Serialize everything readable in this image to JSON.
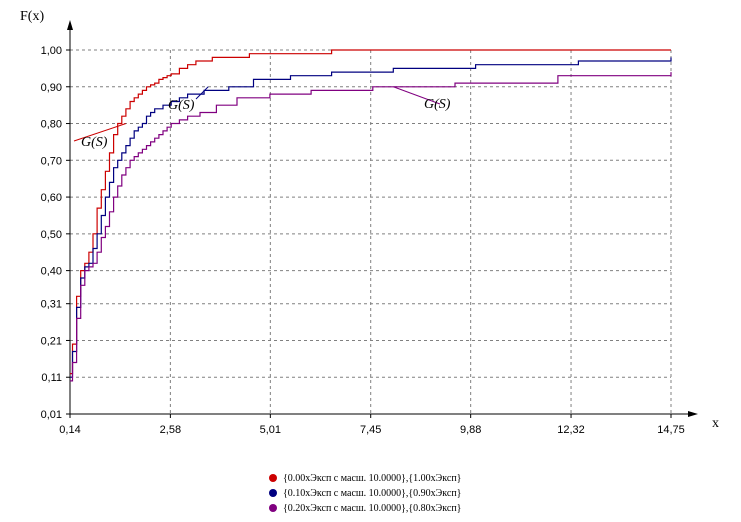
{
  "chart_data": {
    "type": "line",
    "title": "",
    "xlabel": "x",
    "ylabel": "F(x)",
    "xlim": [
      0.14,
      14.75
    ],
    "ylim": [
      0.01,
      1.0
    ],
    "x_ticks": [
      "0,14",
      "2,58",
      "5,01",
      "7,45",
      "9,88",
      "12,32",
      "14,75"
    ],
    "x_tick_values": [
      0.14,
      2.58,
      5.01,
      7.45,
      9.88,
      12.32,
      14.75
    ],
    "y_ticks": [
      "0,01",
      "0,11",
      "0,21",
      "0,31",
      "0,40",
      "0,50",
      "0,60",
      "0,70",
      "0,80",
      "0,90",
      "1,00"
    ],
    "y_tick_values": [
      0.01,
      0.11,
      0.21,
      0.31,
      0.4,
      0.5,
      0.6,
      0.7,
      0.8,
      0.9,
      1.0
    ],
    "grid": true,
    "legend_position": "bottom",
    "series": [
      {
        "name": "{0.00хЭксп с масш. 10.0000},{1.00хЭксп}",
        "color": "#cc0000",
        "x": [
          0.14,
          0.2,
          0.3,
          0.4,
          0.5,
          0.6,
          0.7,
          0.8,
          0.9,
          1.0,
          1.1,
          1.2,
          1.3,
          1.4,
          1.5,
          1.6,
          1.7,
          1.8,
          1.9,
          2.0,
          2.1,
          2.2,
          2.3,
          2.4,
          2.5,
          2.6,
          2.8,
          3.0,
          3.2,
          3.6,
          4.5,
          6.5,
          14.75
        ],
        "y": [
          0.12,
          0.2,
          0.33,
          0.4,
          0.42,
          0.45,
          0.5,
          0.57,
          0.62,
          0.67,
          0.72,
          0.77,
          0.8,
          0.82,
          0.84,
          0.86,
          0.87,
          0.88,
          0.89,
          0.9,
          0.905,
          0.91,
          0.92,
          0.925,
          0.93,
          0.935,
          0.95,
          0.96,
          0.97,
          0.98,
          0.99,
          1.0,
          1.0
        ]
      },
      {
        "name": "{0.10хЭксп с масш. 10.0000},{0.90хЭксп}",
        "color": "#000080",
        "x": [
          0.14,
          0.2,
          0.3,
          0.4,
          0.5,
          0.6,
          0.7,
          0.8,
          0.9,
          1.0,
          1.1,
          1.2,
          1.3,
          1.4,
          1.5,
          1.6,
          1.7,
          1.8,
          1.9,
          2.0,
          2.1,
          2.2,
          2.4,
          2.6,
          2.8,
          3.0,
          3.4,
          4.0,
          4.6,
          5.5,
          6.5,
          8.0,
          10.0,
          12.5,
          14.75
        ],
        "y": [
          0.11,
          0.18,
          0.3,
          0.38,
          0.41,
          0.42,
          0.46,
          0.5,
          0.55,
          0.6,
          0.64,
          0.68,
          0.7,
          0.72,
          0.74,
          0.76,
          0.78,
          0.79,
          0.8,
          0.82,
          0.83,
          0.84,
          0.85,
          0.86,
          0.87,
          0.88,
          0.89,
          0.9,
          0.92,
          0.93,
          0.94,
          0.95,
          0.96,
          0.97,
          0.98
        ]
      },
      {
        "name": "{0.20хЭксп с масш. 10.0000},{0.80хЭксп}",
        "color": "#800080",
        "x": [
          0.14,
          0.2,
          0.3,
          0.4,
          0.5,
          0.6,
          0.7,
          0.8,
          0.9,
          1.0,
          1.1,
          1.2,
          1.3,
          1.4,
          1.5,
          1.6,
          1.7,
          1.8,
          1.9,
          2.0,
          2.1,
          2.2,
          2.3,
          2.4,
          2.5,
          2.6,
          2.8,
          3.0,
          3.3,
          3.7,
          4.2,
          5.0,
          6.0,
          7.5,
          9.5,
          12.0,
          14.75
        ],
        "y": [
          0.1,
          0.15,
          0.27,
          0.36,
          0.4,
          0.41,
          0.42,
          0.45,
          0.49,
          0.52,
          0.56,
          0.6,
          0.63,
          0.66,
          0.68,
          0.7,
          0.71,
          0.72,
          0.73,
          0.74,
          0.75,
          0.76,
          0.77,
          0.78,
          0.79,
          0.8,
          0.81,
          0.82,
          0.83,
          0.85,
          0.87,
          0.88,
          0.89,
          0.9,
          0.91,
          0.93,
          0.94
        ]
      }
    ],
    "annotations": [
      {
        "text": "G(S)",
        "target_x": 1.5,
        "target_y": 0.8
      },
      {
        "text": "G(S)",
        "target_x": 3.5,
        "target_y": 0.9
      },
      {
        "text": "G(S)",
        "target_x": 8.0,
        "target_y": 0.9
      }
    ]
  }
}
